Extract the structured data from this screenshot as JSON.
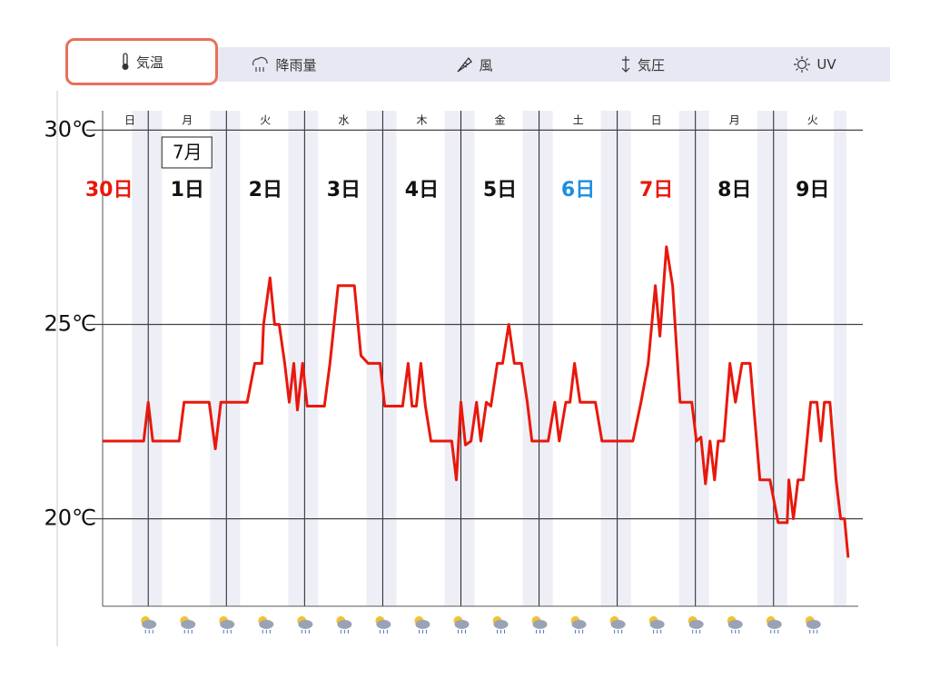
{
  "tabs": [
    {
      "label": "気温",
      "selected": true
    },
    {
      "label": "降雨量"
    },
    {
      "label": "風"
    },
    {
      "label": "気圧"
    },
    {
      "label": "UV"
    }
  ],
  "chart_data": {
    "type": "line",
    "color": "#e8180c",
    "month_label": "7月",
    "days": [
      {
        "weekday": "日",
        "label": "30日",
        "color": "#e8180c"
      },
      {
        "weekday": "月",
        "label": "1日",
        "color": "#111111"
      },
      {
        "weekday": "火",
        "label": "2日",
        "color": "#111111"
      },
      {
        "weekday": "水",
        "label": "3日",
        "color": "#111111"
      },
      {
        "weekday": "木",
        "label": "4日",
        "color": "#111111"
      },
      {
        "weekday": "金",
        "label": "5日",
        "color": "#111111"
      },
      {
        "weekday": "土",
        "label": "6日",
        "color": "#1a8fe0"
      },
      {
        "weekday": "日",
        "label": "7日",
        "color": "#e8180c"
      },
      {
        "weekday": "月",
        "label": "8日",
        "color": "#111111"
      },
      {
        "weekday": "火",
        "label": "9日",
        "color": "#111111"
      }
    ],
    "x": [
      -14,
      -1.4,
      0,
      1.4,
      9.5,
      11,
      18.7,
      20.6,
      22.3,
      30.4,
      32.7,
      34.9,
      35.4,
      37.4,
      38.8,
      40.2,
      41.9,
      43.3,
      44.7,
      45.8,
      47.4,
      48.8,
      54.1,
      55.8,
      58.3,
      63.3,
      65.3,
      67.5,
      71.2,
      72.6,
      78.1,
      79.8,
      81,
      82.3,
      83.7,
      85.1,
      86.8,
      93.2,
      94.6,
      96,
      97.4,
      99.1,
      100.8,
      102.1,
      103.8,
      105.2,
      107.2,
      108.8,
      110.7,
      112.4,
      114.6,
      116.4,
      117.8,
      122.8,
      124.8,
      126.2,
      128.2,
      129.5,
      130.9,
      132.6,
      137.3,
      139.3,
      148.8,
      151.3,
      153.5,
      155.7,
      157.1,
      159.1,
      161,
      163.3,
      166.9,
      168.3,
      169.7,
      171.1,
      172.5,
      173.9,
      175,
      176.7,
      178.6,
      180.3,
      182.3,
      184.8,
      187.8,
      190.9,
      193.4,
      196.2,
      196.7,
      198.1,
      199.5,
      201.1,
      203.4,
      205.3,
      206.5,
      207.6,
      209.3,
      211.2,
      212.6,
      213.8,
      214.9
    ],
    "values": [
      22.0,
      22.0,
      23.0,
      22.0,
      22.0,
      23.0,
      23.0,
      21.8,
      23.0,
      23.0,
      24.0,
      24.0,
      25.0,
      26.2,
      25.0,
      25.0,
      24.0,
      23.0,
      24.0,
      22.8,
      24.0,
      22.9,
      22.9,
      24.0,
      26.0,
      26.0,
      24.2,
      24.0,
      24.0,
      22.9,
      22.9,
      24.0,
      22.9,
      22.9,
      24.0,
      22.9,
      22.0,
      22.0,
      21.0,
      23.0,
      21.9,
      22.0,
      23.0,
      22.0,
      23.0,
      22.9,
      24.0,
      24.0,
      25.0,
      24.0,
      24.0,
      23.0,
      22.0,
      22.0,
      23.0,
      22.0,
      23.0,
      23.0,
      24.0,
      23.0,
      23.0,
      22.0,
      22.0,
      23.0,
      24.0,
      26.0,
      24.7,
      27.0,
      26.0,
      23.0,
      23.0,
      22.0,
      22.1,
      20.9,
      22.0,
      21.0,
      22.0,
      22.0,
      24.0,
      23.0,
      24.0,
      24.0,
      21.0,
      21.0,
      19.9,
      19.9,
      21.0,
      20.0,
      21.0,
      21.0,
      23.0,
      23.0,
      22.0,
      23.0,
      23.0,
      21.0,
      20.0,
      20.0,
      19.0
    ],
    "xlim": [
      -14,
      218
    ],
    "xticks": [
      0,
      24,
      48,
      72,
      96,
      120,
      144,
      168,
      192
    ],
    "ylim": [
      17.75,
      30.5
    ],
    "yticks": [
      {
        "value": 20,
        "label": "20℃"
      },
      {
        "value": 25,
        "label": "25℃"
      },
      {
        "value": 30,
        "label": "30℃"
      }
    ]
  }
}
